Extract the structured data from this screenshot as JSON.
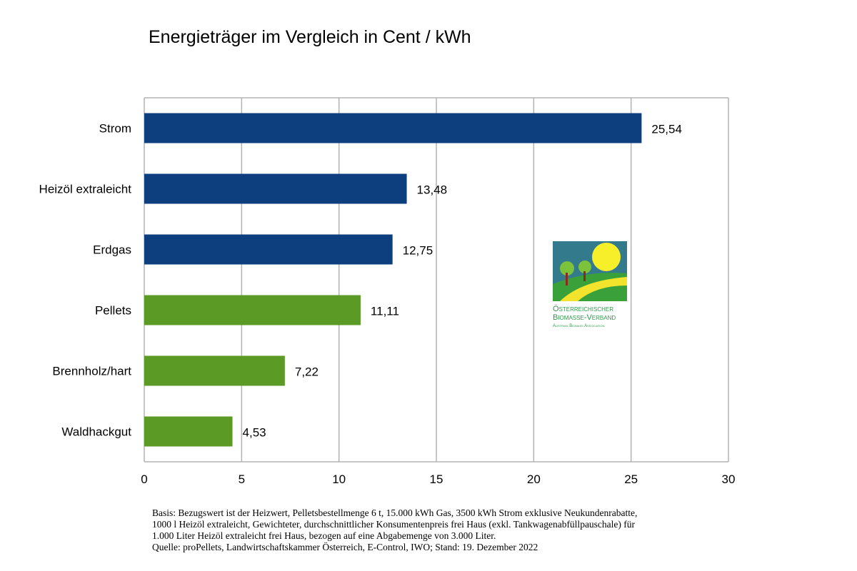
{
  "chart_data": {
    "type": "bar",
    "orientation": "horizontal",
    "title": "Energieträger im Vergleich in Cent / kWh",
    "categories": [
      "Strom",
      "Heizöl extraleicht",
      "Erdgas",
      "Pellets",
      "Brennholz/hart",
      "Waldhackgut"
    ],
    "values": [
      25.54,
      13.48,
      12.75,
      11.11,
      7.22,
      4.53
    ],
    "value_labels": [
      "25,54",
      "13,48",
      "12,75",
      "11,11",
      "7,22",
      "4,53"
    ],
    "colors": [
      "#0d3f7e",
      "#0d3f7e",
      "#0d3f7e",
      "#5b9a24",
      "#5b9a24",
      "#5b9a24"
    ],
    "xlim": [
      0,
      30
    ],
    "xticks": [
      "0",
      "5",
      "10",
      "15",
      "20",
      "25",
      "30"
    ],
    "grid": true
  },
  "logo": {
    "line1": "Österreichischer",
    "line2": "Biomasse-Verband",
    "line3": "Austrian Biomass Association"
  },
  "footnote": [
    "Basis: Bezugswert ist der Heizwert, Pelletsbestellmenge 6 t, 15.000 kWh Gas, 3500 kWh Strom exklusive Neukundenrabatte,",
    "1000 l Heizöl extraleicht, Gewichteter, durchschnittlicher Konsumentenpreis frei Haus (exkl. Tankwagenabfüllpauschale) für",
    "1.000 Liter Heizöl extraleicht frei Haus, bezogen auf eine Abgabemenge von 3.000 Liter.",
    "Quelle: proPellets, Landwirtschaftskammer Österreich, E-Control, IWO; Stand: 19. Dezember 2022"
  ]
}
